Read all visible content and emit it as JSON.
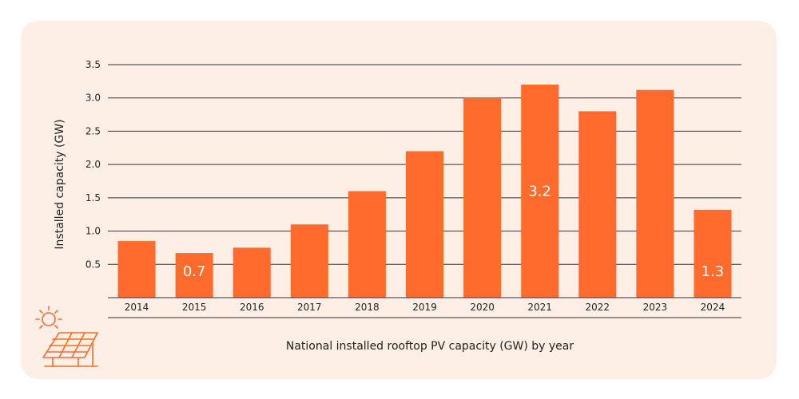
{
  "chart_data": {
    "type": "bar",
    "categories": [
      "2014",
      "2015",
      "2016",
      "2017",
      "2018",
      "2019",
      "2020",
      "2021",
      "2022",
      "2023",
      "2024"
    ],
    "values": [
      0.85,
      0.67,
      0.75,
      1.1,
      1.6,
      2.2,
      3.0,
      3.2,
      2.8,
      3.12,
      1.32
    ],
    "ylabel": "Installed capacity (GW)",
    "xlabel": "",
    "caption": "National installed rooftop PV capacity (GW) by year",
    "ylim": [
      0,
      3.5
    ],
    "yticks": [
      "0.5",
      "1.0",
      "1.5",
      "2.0",
      "2.5",
      "3.0",
      "3.5"
    ],
    "data_labels": [
      {
        "category": "2015",
        "text": "0.7"
      },
      {
        "category": "2021",
        "text": "3.2"
      },
      {
        "category": "2024",
        "text": "1.3"
      }
    ],
    "grid": true,
    "bar_color": "#ff6b2c",
    "background_color": "#fdeee6",
    "icon": "solar-panel-icon"
  }
}
